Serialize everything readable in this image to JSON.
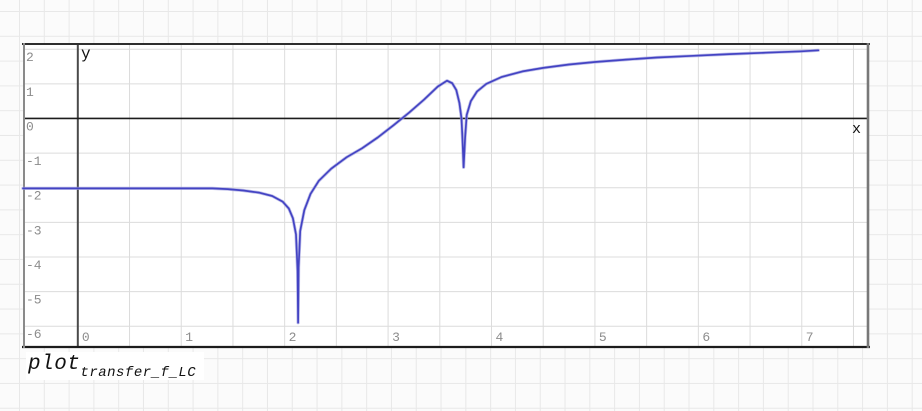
{
  "title": {
    "base": "plot",
    "subscript": "transfer_f_LC"
  },
  "axes": {
    "x_label": "x",
    "y_label": "y"
  },
  "colors": {
    "curve": "#4343c3",
    "curve_halo": "#a3a3e0",
    "plot_bg": "#ffffff",
    "plot_grid": "#dcdcdc",
    "page_bg": "#fbfbfb",
    "page_grid": "#e8e8e8",
    "border_top": "#2e2e2e",
    "border_bottom": "#1c1c1c",
    "border_left": "#8a8a8a",
    "border_right": "#787878",
    "y_axis_line": "#4a4a4a",
    "x_axis_line": "#1c1c1c",
    "tick_text": "#8c8c8c",
    "label_text": "#111111"
  },
  "chart_data": {
    "type": "line",
    "title": "plot_transfer_f_LC",
    "xlabel": "x",
    "ylabel": "y",
    "xlim": [
      -0.53,
      7.65
    ],
    "ylim": [
      -6.63,
      2.18
    ],
    "x_ticks": [
      0,
      1,
      2,
      3,
      4,
      5,
      6,
      7
    ],
    "y_ticks": [
      2,
      1,
      0,
      -1,
      -2,
      -3,
      -4,
      -5,
      -6
    ],
    "x_grid_step": 0.5,
    "y_grid_step": 1,
    "grid": true,
    "legend": false,
    "series": [
      {
        "name": "transfer_f_LC",
        "color": "#4343c3",
        "points": [
          [
            -0.53,
            -2.02
          ],
          [
            0.0,
            -2.02
          ],
          [
            0.5,
            -2.02
          ],
          [
            1.0,
            -2.02
          ],
          [
            1.3,
            -2.02
          ],
          [
            1.45,
            -2.04
          ],
          [
            1.6,
            -2.08
          ],
          [
            1.75,
            -2.14
          ],
          [
            1.88,
            -2.24
          ],
          [
            1.98,
            -2.4
          ],
          [
            2.04,
            -2.6
          ],
          [
            2.08,
            -2.88
          ],
          [
            2.11,
            -3.35
          ],
          [
            2.125,
            -4.4
          ],
          [
            2.13,
            -5.9
          ],
          [
            2.135,
            -4.3
          ],
          [
            2.15,
            -3.25
          ],
          [
            2.19,
            -2.65
          ],
          [
            2.25,
            -2.18
          ],
          [
            2.33,
            -1.8
          ],
          [
            2.45,
            -1.45
          ],
          [
            2.6,
            -1.12
          ],
          [
            2.75,
            -0.86
          ],
          [
            2.9,
            -0.55
          ],
          [
            3.05,
            -0.2
          ],
          [
            3.2,
            0.16
          ],
          [
            3.35,
            0.55
          ],
          [
            3.48,
            0.92
          ],
          [
            3.57,
            1.09
          ],
          [
            3.62,
            1.02
          ],
          [
            3.66,
            0.82
          ],
          [
            3.69,
            0.45
          ],
          [
            3.71,
            0.0
          ],
          [
            3.72,
            -0.6
          ],
          [
            3.73,
            -1.41
          ],
          [
            3.745,
            -0.55
          ],
          [
            3.76,
            0.1
          ],
          [
            3.8,
            0.5
          ],
          [
            3.86,
            0.78
          ],
          [
            3.95,
            1.0
          ],
          [
            4.1,
            1.2
          ],
          [
            4.3,
            1.36
          ],
          [
            4.5,
            1.46
          ],
          [
            4.75,
            1.56
          ],
          [
            5.0,
            1.63
          ],
          [
            5.3,
            1.7
          ],
          [
            5.6,
            1.76
          ],
          [
            5.95,
            1.81
          ],
          [
            6.3,
            1.86
          ],
          [
            6.65,
            1.9
          ],
          [
            7.0,
            1.94
          ],
          [
            7.16,
            1.97
          ]
        ]
      }
    ],
    "features": {
      "flat_level_left": -2.0,
      "resonance_dip": {
        "x": 2.13,
        "y": -5.9
      },
      "local_peak": {
        "x": 3.57,
        "y": 1.1
      },
      "notch": {
        "x": 3.73,
        "y": -1.41
      },
      "curve_end": {
        "x": 7.16,
        "y": 1.97
      }
    }
  }
}
